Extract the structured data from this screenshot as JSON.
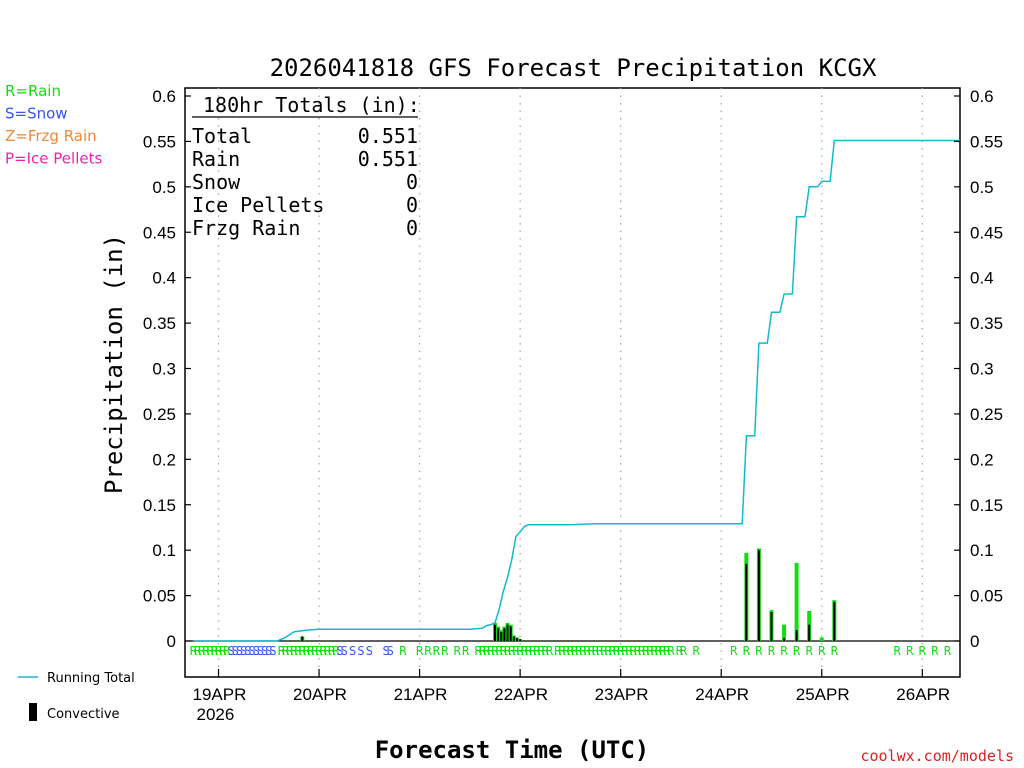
{
  "chart_data": {
    "type": "bar+line",
    "title": "2026041818 GFS Forecast Precipitation KCGX",
    "xlabel": "Forecast Time (UTC)",
    "ylabel": "Precipitation (in)",
    "ylim": [
      0,
      0.6
    ],
    "y_ticks": [
      "0",
      "0.05",
      "0.1",
      "0.15",
      "0.2",
      "0.25",
      "0.3",
      "0.35",
      "0.4",
      "0.45",
      "0.5",
      "0.55",
      "0.6"
    ],
    "x_hours_range": [
      -2,
      183
    ],
    "x_ticks": [
      {
        "hour": 6,
        "label": "19APR",
        "sublabel": "2026"
      },
      {
        "hour": 30,
        "label": "20APR"
      },
      {
        "hour": 54,
        "label": "21APR"
      },
      {
        "hour": 78,
        "label": "22APR"
      },
      {
        "hour": 102,
        "label": "23APR"
      },
      {
        "hour": 126,
        "label": "24APR"
      },
      {
        "hour": 150,
        "label": "25APR"
      },
      {
        "hour": 174,
        "label": "26APR"
      }
    ],
    "legend_types": [
      {
        "text": "R=Rain",
        "color": "#11dd11"
      },
      {
        "text": "S=Snow",
        "color": "#3355ee"
      },
      {
        "text": "Z=Frzg Rain",
        "color": "#ee8833"
      },
      {
        "text": "P=Ice Pellets",
        "color": "#ee22aa"
      }
    ],
    "legend_series": [
      {
        "text": "Running Total",
        "color": "#11bbcc"
      },
      {
        "text": "Convective",
        "color": "#000000"
      }
    ],
    "totals": {
      "header": "180hr Totals (in):",
      "rows": [
        {
          "label": "Total",
          "value": "0.551"
        },
        {
          "label": "Rain",
          "value": "0.551"
        },
        {
          "label": "Snow",
          "value": "0"
        },
        {
          "label": "Ice Pellets",
          "value": "0"
        },
        {
          "label": "Frzg Rain",
          "value": "0"
        }
      ]
    },
    "running_total": [
      [
        0,
        0
      ],
      [
        20,
        0
      ],
      [
        22,
        0.004
      ],
      [
        24,
        0.01
      ],
      [
        27,
        0.012
      ],
      [
        30,
        0.013
      ],
      [
        36,
        0.013
      ],
      [
        48,
        0.013
      ],
      [
        60,
        0.013
      ],
      [
        66,
        0.013
      ],
      [
        69,
        0.014
      ],
      [
        70,
        0.017
      ],
      [
        71,
        0.018
      ],
      [
        72,
        0.02
      ],
      [
        73,
        0.035
      ],
      [
        74,
        0.055
      ],
      [
        75,
        0.07
      ],
      [
        76,
        0.09
      ],
      [
        77,
        0.115
      ],
      [
        78,
        0.12
      ],
      [
        79,
        0.126
      ],
      [
        80,
        0.128
      ],
      [
        84,
        0.128
      ],
      [
        90,
        0.128
      ],
      [
        96,
        0.129
      ],
      [
        108,
        0.129
      ],
      [
        120,
        0.129
      ],
      [
        131,
        0.129
      ],
      [
        132,
        0.226
      ],
      [
        134,
        0.226
      ],
      [
        135,
        0.328
      ],
      [
        137,
        0.328
      ],
      [
        138,
        0.362
      ],
      [
        140,
        0.362
      ],
      [
        141,
        0.382
      ],
      [
        143,
        0.382
      ],
      [
        144,
        0.467
      ],
      [
        146,
        0.467
      ],
      [
        147,
        0.5
      ],
      [
        149,
        0.5
      ],
      [
        150,
        0.506
      ],
      [
        152,
        0.506
      ],
      [
        153,
        0.551
      ],
      [
        183,
        0.551
      ]
    ],
    "precip_bars": [
      {
        "hour": 26,
        "total": 0.005,
        "conv": 0.005
      },
      {
        "hour": 72,
        "total": 0.02,
        "conv": 0.018
      },
      {
        "hour": 72.75,
        "total": 0.016,
        "conv": 0.014
      },
      {
        "hour": 73.5,
        "total": 0.012,
        "conv": 0.01
      },
      {
        "hour": 74.25,
        "total": 0.016,
        "conv": 0.014
      },
      {
        "hour": 75,
        "total": 0.02,
        "conv": 0.018
      },
      {
        "hour": 75.75,
        "total": 0.018,
        "conv": 0.016
      },
      {
        "hour": 76.5,
        "total": 0.006,
        "conv": 0.005
      },
      {
        "hour": 77.25,
        "total": 0.004,
        "conv": 0.003
      },
      {
        "hour": 78,
        "total": 0.002,
        "conv": 0.002
      },
      {
        "hour": 132,
        "total": 0.097,
        "conv": 0.085
      },
      {
        "hour": 135,
        "total": 0.102,
        "conv": 0.1
      },
      {
        "hour": 138,
        "total": 0.034,
        "conv": 0.032
      },
      {
        "hour": 141,
        "total": 0.018,
        "conv": 0.003
      },
      {
        "hour": 144,
        "total": 0.086,
        "conv": 0.012
      },
      {
        "hour": 147,
        "total": 0.033,
        "conv": 0.018
      },
      {
        "hour": 150,
        "total": 0.004,
        "conv": 0.0
      },
      {
        "hour": 153,
        "total": 0.045,
        "conv": 0.043
      }
    ],
    "precip_type_marks": [
      {
        "hour": 0,
        "type": "R"
      },
      {
        "hour": 1,
        "type": "R"
      },
      {
        "hour": 2,
        "type": "R"
      },
      {
        "hour": 3,
        "type": "R"
      },
      {
        "hour": 4,
        "type": "R"
      },
      {
        "hour": 5,
        "type": "R"
      },
      {
        "hour": 6,
        "type": "R"
      },
      {
        "hour": 7,
        "type": "R"
      },
      {
        "hour": 8,
        "type": "R"
      },
      {
        "hour": 9,
        "type": "S"
      },
      {
        "hour": 10,
        "type": "S"
      },
      {
        "hour": 11,
        "type": "S"
      },
      {
        "hour": 12,
        "type": "S"
      },
      {
        "hour": 13,
        "type": "S"
      },
      {
        "hour": 14,
        "type": "S"
      },
      {
        "hour": 15,
        "type": "S"
      },
      {
        "hour": 16,
        "type": "S"
      },
      {
        "hour": 17,
        "type": "S"
      },
      {
        "hour": 18,
        "type": "S"
      },
      {
        "hour": 19,
        "type": "S"
      },
      {
        "hour": 21,
        "type": "R"
      },
      {
        "hour": 22,
        "type": "R"
      },
      {
        "hour": 23,
        "type": "R"
      },
      {
        "hour": 24,
        "type": "R"
      },
      {
        "hour": 25,
        "type": "R"
      },
      {
        "hour": 26,
        "type": "R"
      },
      {
        "hour": 27,
        "type": "R"
      },
      {
        "hour": 28,
        "type": "R"
      },
      {
        "hour": 29,
        "type": "R"
      },
      {
        "hour": 30,
        "type": "R"
      },
      {
        "hour": 31,
        "type": "R"
      },
      {
        "hour": 32,
        "type": "R"
      },
      {
        "hour": 33,
        "type": "R"
      },
      {
        "hour": 34,
        "type": "R"
      },
      {
        "hour": 35,
        "type": "S"
      },
      {
        "hour": 36,
        "type": "S"
      },
      {
        "hour": 38,
        "type": "S"
      },
      {
        "hour": 40,
        "type": "S"
      },
      {
        "hour": 42,
        "type": "S"
      },
      {
        "hour": 46,
        "type": "S"
      },
      {
        "hour": 47,
        "type": "S"
      },
      {
        "hour": 50,
        "type": "R"
      },
      {
        "hour": 54,
        "type": "R"
      },
      {
        "hour": 56,
        "type": "R"
      },
      {
        "hour": 58,
        "type": "R"
      },
      {
        "hour": 60,
        "type": "R"
      },
      {
        "hour": 63,
        "type": "R"
      },
      {
        "hour": 65,
        "type": "R"
      },
      {
        "hour": 68,
        "type": "R"
      },
      {
        "hour": 69,
        "type": "R"
      },
      {
        "hour": 70,
        "type": "R"
      },
      {
        "hour": 71,
        "type": "R"
      },
      {
        "hour": 72,
        "type": "R"
      },
      {
        "hour": 73,
        "type": "R"
      },
      {
        "hour": 74,
        "type": "R"
      },
      {
        "hour": 75,
        "type": "R"
      },
      {
        "hour": 76,
        "type": "R"
      },
      {
        "hour": 77,
        "type": "R"
      },
      {
        "hour": 78,
        "type": "R"
      },
      {
        "hour": 79,
        "type": "R"
      },
      {
        "hour": 80,
        "type": "R"
      },
      {
        "hour": 81,
        "type": "R"
      },
      {
        "hour": 82,
        "type": "R"
      },
      {
        "hour": 83,
        "type": "R"
      },
      {
        "hour": 84,
        "type": "R"
      },
      {
        "hour": 85,
        "type": "R"
      },
      {
        "hour": 87,
        "type": "R"
      },
      {
        "hour": 88,
        "type": "R"
      },
      {
        "hour": 89,
        "type": "R"
      },
      {
        "hour": 90,
        "type": "R"
      },
      {
        "hour": 91,
        "type": "R"
      },
      {
        "hour": 92,
        "type": "R"
      },
      {
        "hour": 93,
        "type": "R"
      },
      {
        "hour": 94,
        "type": "R"
      },
      {
        "hour": 95,
        "type": "R"
      },
      {
        "hour": 96,
        "type": "R"
      },
      {
        "hour": 97,
        "type": "R"
      },
      {
        "hour": 98,
        "type": "R"
      },
      {
        "hour": 99,
        "type": "R"
      },
      {
        "hour": 100,
        "type": "R"
      },
      {
        "hour": 101,
        "type": "R"
      },
      {
        "hour": 102,
        "type": "R"
      },
      {
        "hour": 103,
        "type": "R"
      },
      {
        "hour": 104,
        "type": "R"
      },
      {
        "hour": 105,
        "type": "R"
      },
      {
        "hour": 106,
        "type": "R"
      },
      {
        "hour": 107,
        "type": "R"
      },
      {
        "hour": 108,
        "type": "R"
      },
      {
        "hour": 109,
        "type": "R"
      },
      {
        "hour": 110,
        "type": "R"
      },
      {
        "hour": 111,
        "type": "R"
      },
      {
        "hour": 112,
        "type": "R"
      },
      {
        "hour": 113,
        "type": "R"
      },
      {
        "hour": 114,
        "type": "R"
      },
      {
        "hour": 116,
        "type": "R"
      },
      {
        "hour": 117,
        "type": "R"
      },
      {
        "hour": 120,
        "type": "R"
      },
      {
        "hour": 129,
        "type": "R"
      },
      {
        "hour": 132,
        "type": "R"
      },
      {
        "hour": 135,
        "type": "R"
      },
      {
        "hour": 138,
        "type": "R"
      },
      {
        "hour": 141,
        "type": "R"
      },
      {
        "hour": 144,
        "type": "R"
      },
      {
        "hour": 147,
        "type": "R"
      },
      {
        "hour": 150,
        "type": "R"
      },
      {
        "hour": 153,
        "type": "R"
      },
      {
        "hour": 168,
        "type": "R"
      },
      {
        "hour": 171,
        "type": "R"
      },
      {
        "hour": 174,
        "type": "R"
      },
      {
        "hour": 177,
        "type": "R"
      },
      {
        "hour": 180,
        "type": "R"
      }
    ],
    "type_colors": {
      "R": "#11dd11",
      "S": "#3355ee",
      "Z": "#ee8833",
      "P": "#ee22aa"
    },
    "credit": "coolwx.com/models",
    "colors": {
      "axis": "#000000",
      "grid": "#aaaaaa",
      "running_total": "#11bbcc",
      "bar_total": "#11dd11",
      "bar_convective": "#000000",
      "credit": "#dd2222"
    }
  }
}
